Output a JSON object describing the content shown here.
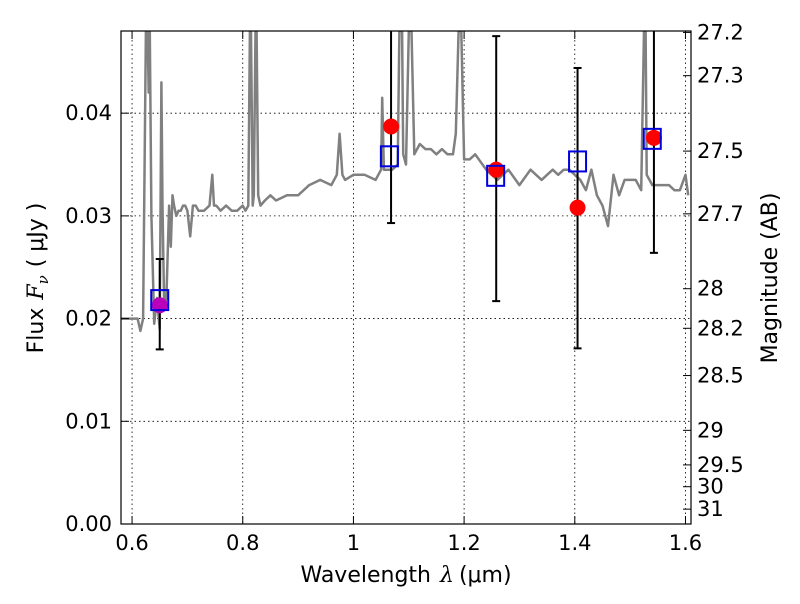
{
  "chart_data": {
    "type": "scatter",
    "xlabel_text": "Wavelength",
    "xlabel_symbol": "λ",
    "xlabel_unit": "(μm)",
    "ylabel_text": "Flux",
    "ylabel_symbol": "F",
    "ylabel_subscript": "ν",
    "ylabel_unit": "( μJy )",
    "y2label": "Magnitude (AB)",
    "xlim": [
      0.58,
      1.61
    ],
    "ylim": [
      0.0,
      0.048
    ],
    "grid": true,
    "x_ticks": [
      {
        "value": 0.6,
        "label": "0.6"
      },
      {
        "value": 0.8,
        "label": "0.8"
      },
      {
        "value": 1.0,
        "label": "1"
      },
      {
        "value": 1.2,
        "label": "1.2"
      },
      {
        "value": 1.4,
        "label": "1.4"
      },
      {
        "value": 1.6,
        "label": "1.6"
      }
    ],
    "y_ticks": [
      {
        "value": 0.0,
        "label": "0.00"
      },
      {
        "value": 0.01,
        "label": "0.01"
      },
      {
        "value": 0.02,
        "label": "0.02"
      },
      {
        "value": 0.03,
        "label": "0.03"
      },
      {
        "value": 0.04,
        "label": "0.04"
      }
    ],
    "y2_ticks": [
      {
        "value": 27.2,
        "label": "27.2"
      },
      {
        "value": 27.3,
        "label": "27.3"
      },
      {
        "value": 27.5,
        "label": "27.5"
      },
      {
        "value": 27.7,
        "label": "27.7"
      },
      {
        "value": 28.0,
        "label": "28"
      },
      {
        "value": 28.2,
        "label": "28.2"
      },
      {
        "value": 28.5,
        "label": "28.5"
      },
      {
        "value": 29.0,
        "label": "29"
      },
      {
        "value": 29.5,
        "label": "29.5"
      },
      {
        "value": 30.0,
        "label": "30"
      },
      {
        "value": 31.0,
        "label": "31"
      }
    ],
    "spectrum": {
      "color": "#808080",
      "x": [
        0.58,
        0.6,
        0.61,
        0.615,
        0.62,
        0.625,
        0.628,
        0.63,
        0.632,
        0.635,
        0.64,
        0.645,
        0.65,
        0.653,
        0.655,
        0.658,
        0.662,
        0.667,
        0.67,
        0.673,
        0.676,
        0.68,
        0.684,
        0.688,
        0.692,
        0.696,
        0.7,
        0.705,
        0.71,
        0.715,
        0.72,
        0.73,
        0.74,
        0.745,
        0.748,
        0.752,
        0.76,
        0.77,
        0.78,
        0.79,
        0.8,
        0.805,
        0.81,
        0.813,
        0.815,
        0.818,
        0.82,
        0.823,
        0.825,
        0.828,
        0.832,
        0.84,
        0.85,
        0.86,
        0.88,
        0.9,
        0.92,
        0.94,
        0.96,
        0.97,
        0.975,
        0.98,
        0.985,
        1.0,
        1.02,
        1.04,
        1.05,
        1.052,
        1.055,
        1.06,
        1.07,
        1.08,
        1.083,
        1.088,
        1.09,
        1.095,
        1.1,
        1.105,
        1.11,
        1.12,
        1.13,
        1.14,
        1.15,
        1.16,
        1.17,
        1.18,
        1.185,
        1.19,
        1.195,
        1.2,
        1.21,
        1.22,
        1.24,
        1.25,
        1.26,
        1.27,
        1.28,
        1.3,
        1.32,
        1.34,
        1.35,
        1.36,
        1.37,
        1.38,
        1.39,
        1.4,
        1.41,
        1.42,
        1.43,
        1.44,
        1.45,
        1.46,
        1.47,
        1.48,
        1.49,
        1.5,
        1.51,
        1.52,
        1.525,
        1.528,
        1.53,
        1.535,
        1.54,
        1.55,
        1.56,
        1.57,
        1.58,
        1.59,
        1.6,
        1.605
      ],
      "y": [
        0.02,
        0.02,
        0.02,
        0.0188,
        0.02,
        0.048,
        0.048,
        0.042,
        0.048,
        0.03,
        0.0195,
        0.022,
        0.019,
        0.043,
        0.031,
        0.021,
        0.022,
        0.031,
        0.027,
        0.032,
        0.031,
        0.03,
        0.0305,
        0.0305,
        0.031,
        0.031,
        0.0305,
        0.028,
        0.031,
        0.031,
        0.0305,
        0.0305,
        0.031,
        0.034,
        0.031,
        0.031,
        0.0305,
        0.031,
        0.0305,
        0.0305,
        0.031,
        0.0305,
        0.031,
        0.048,
        0.048,
        0.031,
        0.032,
        0.048,
        0.048,
        0.032,
        0.031,
        0.0315,
        0.032,
        0.0315,
        0.032,
        0.032,
        0.033,
        0.0335,
        0.033,
        0.034,
        0.038,
        0.034,
        0.0335,
        0.034,
        0.034,
        0.0335,
        0.0345,
        0.0415,
        0.0345,
        0.0345,
        0.0345,
        0.035,
        0.048,
        0.048,
        0.036,
        0.035,
        0.048,
        0.048,
        0.036,
        0.037,
        0.0365,
        0.0365,
        0.036,
        0.0365,
        0.036,
        0.036,
        0.038,
        0.048,
        0.048,
        0.0355,
        0.0355,
        0.036,
        0.0345,
        0.034,
        0.0335,
        0.034,
        0.0345,
        0.033,
        0.0345,
        0.0335,
        0.034,
        0.0345,
        0.034,
        0.0345,
        0.0345,
        0.034,
        0.0335,
        0.0325,
        0.0345,
        0.032,
        0.031,
        0.029,
        0.034,
        0.032,
        0.0335,
        0.0335,
        0.0335,
        0.0325,
        0.048,
        0.048,
        0.034,
        0.0335,
        0.033,
        0.033,
        0.033,
        0.033,
        0.0325,
        0.0325,
        0.034,
        0.032
      ]
    },
    "series": [
      {
        "marker": "open-square",
        "color": "#0000dd",
        "x": [
          0.65,
          1.065,
          1.257,
          1.405,
          1.54
        ],
        "y": [
          0.0218,
          0.0358,
          0.0339,
          0.0353,
          0.0375
        ]
      },
      {
        "marker": "filled-circle",
        "color": "#ff0000",
        "x": [
          0.65,
          1.068,
          1.258,
          1.405,
          1.543
        ],
        "y": [
          0.0213,
          0.0387,
          0.0345,
          0.0308,
          0.0376
        ],
        "point_colors": [
          "#bb00bb",
          "#ff0000",
          "#ff0000",
          "#ff0000",
          "#ff0000"
        ],
        "err_low": [
          0.017,
          0.0293,
          0.0217,
          0.0171,
          0.0264
        ],
        "err_high": [
          0.0258,
          0.048,
          0.0475,
          0.0444,
          0.048
        ],
        "err_color": "#000000"
      }
    ]
  }
}
